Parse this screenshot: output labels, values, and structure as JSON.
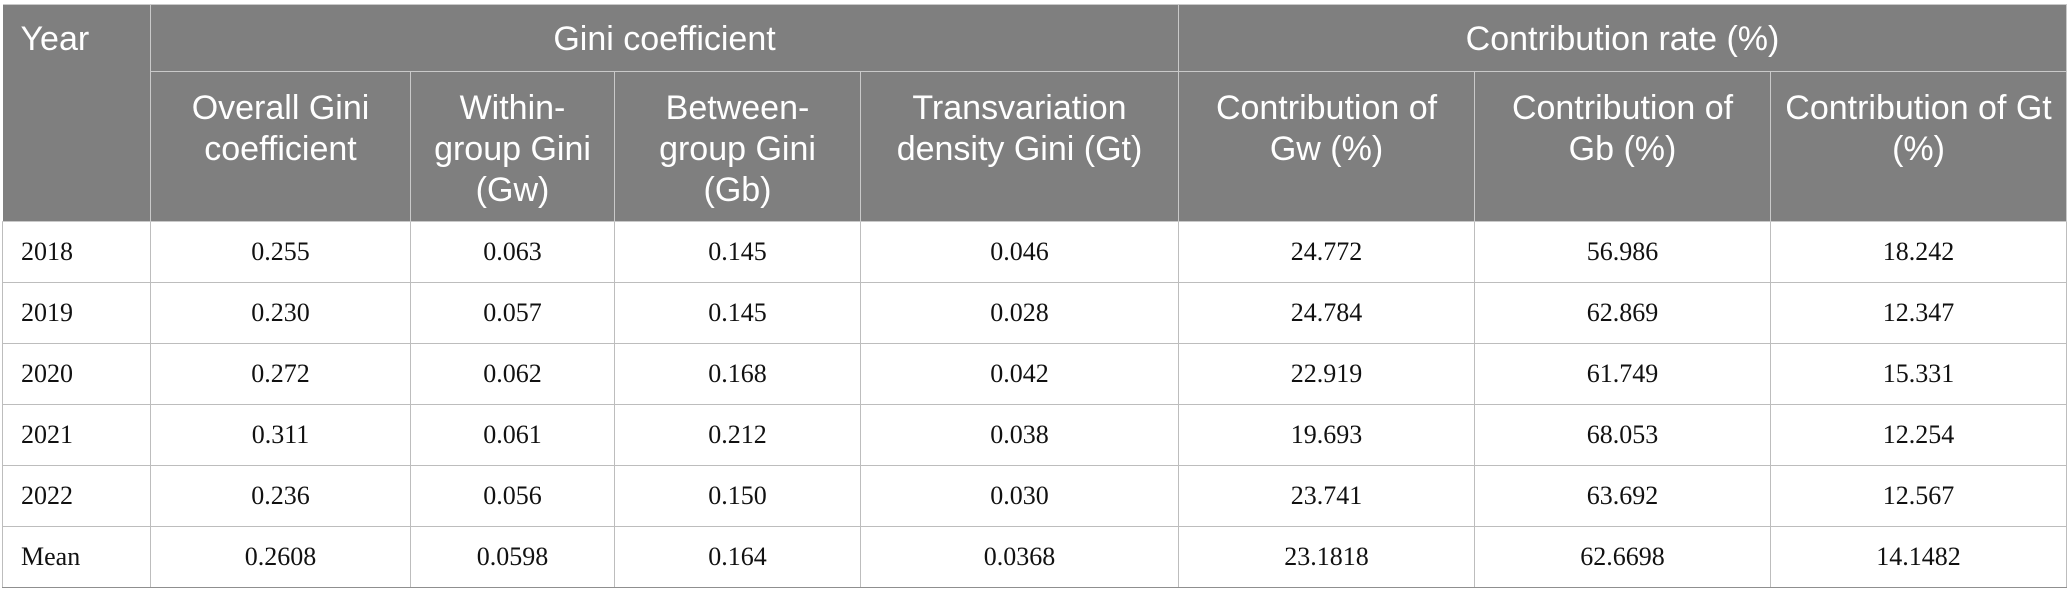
{
  "table": {
    "year_header": "Year",
    "group_headers": {
      "gini": "Gini coefficient",
      "contribution": "Contribution rate (%)"
    },
    "sub_headers": [
      "Overall Gini coefficient",
      "Within-group Gini (Gw)",
      "Between-group Gini (Gb)",
      "Transvariation density Gini (Gt)",
      "Contribution of Gw (%)",
      "Contribution of Gb (%)",
      "Contribution of Gt (%)"
    ],
    "rows": [
      [
        "2018",
        "0.255",
        "0.063",
        "0.145",
        "0.046",
        "24.772",
        "56.986",
        "18.242"
      ],
      [
        "2019",
        "0.230",
        "0.057",
        "0.145",
        "0.028",
        "24.784",
        "62.869",
        "12.347"
      ],
      [
        "2020",
        "0.272",
        "0.062",
        "0.168",
        "0.042",
        "22.919",
        "61.749",
        "15.331"
      ],
      [
        "2021",
        "0.311",
        "0.061",
        "0.212",
        "0.038",
        "19.693",
        "68.053",
        "12.254"
      ],
      [
        "2022",
        "0.236",
        "0.056",
        "0.150",
        "0.030",
        "23.741",
        "63.692",
        "12.567"
      ],
      [
        "Mean",
        "0.2608",
        "0.0598",
        "0.164",
        "0.0368",
        "23.1818",
        "62.6698",
        "14.1482"
      ]
    ]
  },
  "colors": {
    "header_bg": "#7f7f7f",
    "header_text": "#ffffff",
    "cell_border": "#bdbdbd",
    "body_text": "#111111"
  }
}
